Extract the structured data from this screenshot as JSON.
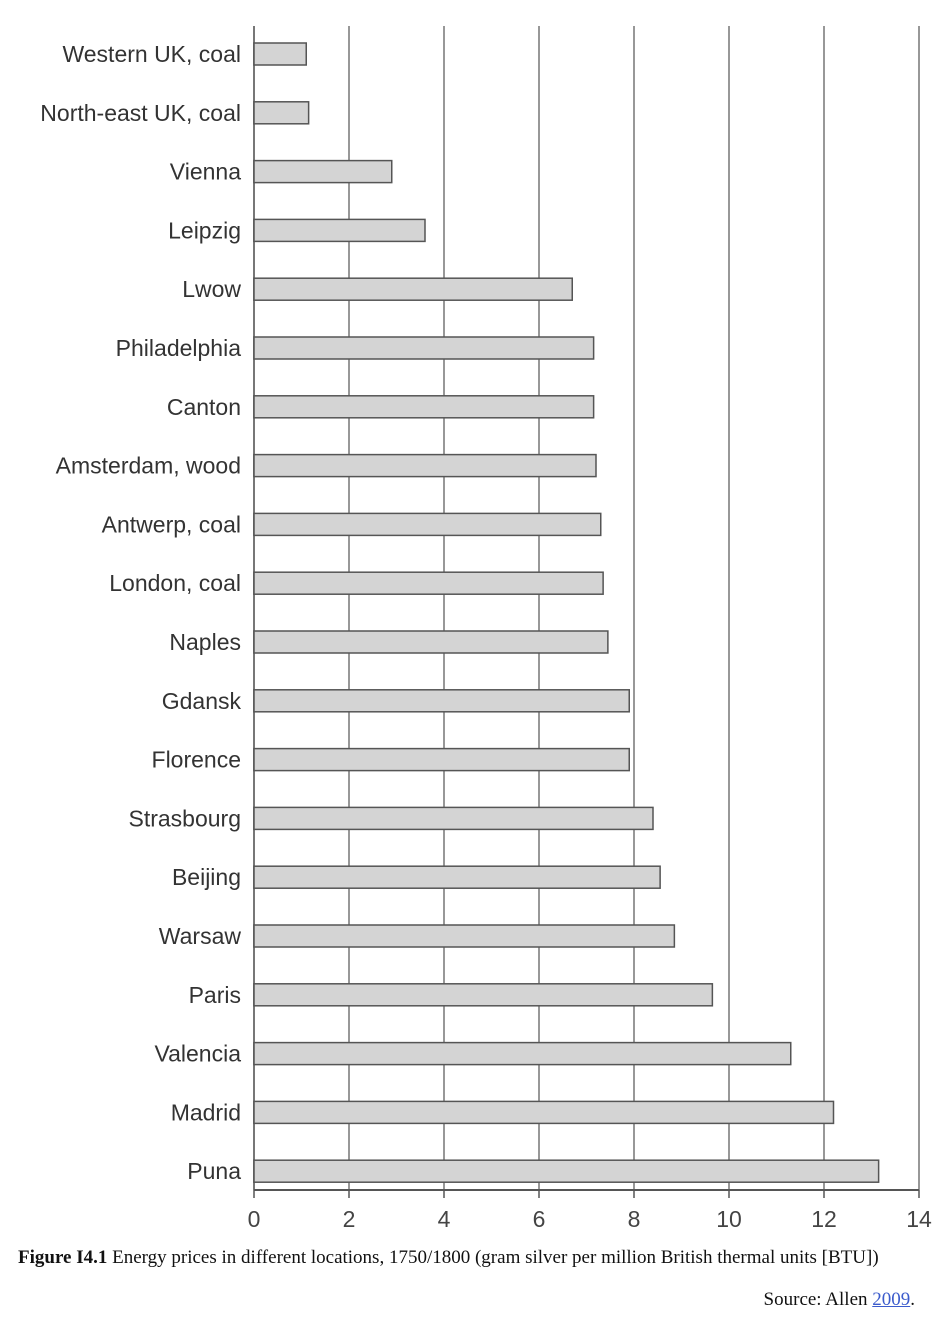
{
  "chart_data": {
    "type": "bar",
    "orientation": "horizontal",
    "categories": [
      "Western UK, coal",
      "North-east UK, coal",
      "Vienna",
      "Leipzig",
      "Lwow",
      "Philadelphia",
      "Canton",
      "Amsterdam, wood",
      "Antwerp, coal",
      "London, coal",
      "Naples",
      "Gdansk",
      "Florence",
      "Strasbourg",
      "Beijing",
      "Warsaw",
      "Paris",
      "Valencia",
      "Madrid",
      "Puna"
    ],
    "values": [
      1.1,
      1.15,
      2.9,
      3.6,
      6.7,
      7.15,
      7.15,
      7.2,
      7.3,
      7.35,
      7.45,
      7.9,
      7.9,
      8.4,
      8.55,
      8.85,
      9.65,
      11.3,
      12.2,
      13.15
    ],
    "xlim": [
      0,
      14
    ],
    "xticks": [
      0,
      2,
      4,
      6,
      8,
      10,
      12,
      14
    ],
    "grid": "vertical",
    "bar_color": "#d4d4d4",
    "bar_stroke": "#555555",
    "grid_color": "#777777"
  },
  "caption": {
    "label": "Figure I4.1",
    "text": " Energy prices in different locations, 1750/1800 (gram silver per million British thermal units [BTU])"
  },
  "source": {
    "prefix": "Source: Allen ",
    "link_text": "2009",
    "suffix": "."
  }
}
